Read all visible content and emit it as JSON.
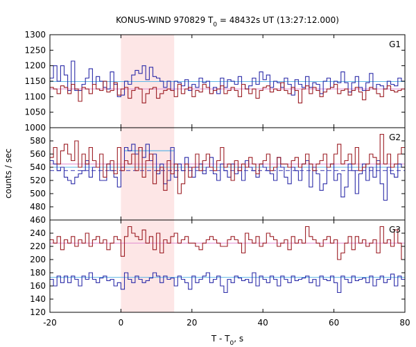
{
  "chart_data": {
    "type": "line",
    "title_main": "KONUS-WIND 970829 T",
    "title_sub": "0",
    "title_rest": " = 48432s UT (13:27:12.000)",
    "xlabel_main": "T - T",
    "xlabel_sub": "0",
    "xlabel_rest": ", s",
    "ylabel": "counts / sec",
    "xlim": [
      -20,
      80
    ],
    "x_ticks": [
      "-20",
      "0",
      "20",
      "40",
      "60",
      "80"
    ],
    "highlight_interval": [
      0,
      15
    ],
    "highlight_color": "#fde6e6",
    "bin_edges_start": -20,
    "bin_width": 1,
    "panels": [
      {
        "label": "G1",
        "ylim": [
          1000,
          1300
        ],
        "y_ticks": [
          "1000",
          "1050",
          "1100",
          "1150",
          "1200",
          "1250",
          "1300"
        ],
        "background_levels": [
          {
            "value": 1149,
            "color": "#5fb6e6"
          },
          {
            "value": 1125,
            "color": "#e08ad0"
          }
        ],
        "series": [
          {
            "color": "#2b2ba8",
            "values": [
              1160,
              1200,
              1150,
              1200,
              1170,
              1120,
              1215,
              1120,
              1120,
              1140,
              1160,
              1190,
              1140,
              1165,
              1150,
              1130,
              1125,
              1180,
              1140,
              1100,
              1105,
              1150,
              1140,
              1170,
              1185,
              1175,
              1200,
              1155,
              1195,
              1165,
              1160,
              1150,
              1130,
              1150,
              1120,
              1150,
              1145,
              1135,
              1155,
              1120,
              1140,
              1130,
              1160,
              1145,
              1150,
              1110,
              1130,
              1110,
              1160,
              1130,
              1155,
              1150,
              1140,
              1165,
              1140,
              1125,
              1135,
              1160,
              1140,
              1180,
              1155,
              1170,
              1130,
              1150,
              1145,
              1130,
              1160,
              1140,
              1105,
              1155,
              1140,
              1130,
              1165,
              1130,
              1145,
              1140,
              1110,
              1150,
              1160,
              1130,
              1150,
              1145,
              1180,
              1145,
              1115,
              1145,
              1165,
              1130,
              1120,
              1145,
              1175,
              1125,
              1140,
              1135,
              1125,
              1150,
              1140,
              1135,
              1160,
              1150
            ]
          },
          {
            "color": "#9b1b22",
            "values": [
              1130,
              1125,
              1110,
              1135,
              1130,
              1110,
              1140,
              1125,
              1085,
              1130,
              1125,
              1110,
              1140,
              1125,
              1120,
              1150,
              1115,
              1120,
              1145,
              1105,
              1125,
              1130,
              1095,
              1120,
              1130,
              1125,
              1080,
              1110,
              1125,
              1130,
              1095,
              1110,
              1120,
              1125,
              1120,
              1100,
              1140,
              1110,
              1125,
              1130,
              1100,
              1120,
              1115,
              1140,
              1130,
              1110,
              1120,
              1125,
              1135,
              1110,
              1120,
              1130,
              1120,
              1100,
              1140,
              1125,
              1110,
              1125,
              1095,
              1120,
              1130,
              1135,
              1115,
              1125,
              1120,
              1145,
              1120,
              1110,
              1130,
              1120,
              1080,
              1125,
              1135,
              1110,
              1130,
              1120,
              1100,
              1115,
              1125,
              1130,
              1140,
              1110,
              1120,
              1125,
              1105,
              1120,
              1130,
              1115,
              1090,
              1120,
              1130,
              1125,
              1110,
              1100,
              1125,
              1135,
              1120,
              1115,
              1120,
              1125
            ]
          }
        ]
      },
      {
        "label": "G2",
        "ylim": [
          460,
          600
        ],
        "y_ticks": [
          "460",
          "480",
          "500",
          "520",
          "540",
          "560",
          "580"
        ],
        "background_levels": [
          {
            "value": 545,
            "color": "#e08ad0"
          },
          {
            "value": 540,
            "color": "#5fb6e6"
          },
          {
            "value": 535,
            "color": "#3434b0",
            "dashed": true
          }
        ],
        "segments": [
          {
            "x0": 1,
            "x1": 15,
            "value": 565,
            "color": "#5fb6e6"
          }
        ],
        "series": [
          {
            "color": "#2b2ba8",
            "values": [
              550,
              545,
              535,
              540,
              525,
              520,
              515,
              525,
              530,
              535,
              550,
              525,
              540,
              540,
              520,
              520,
              545,
              535,
              525,
              510,
              540,
              570,
              565,
              575,
              560,
              570,
              555,
              575,
              550,
              560,
              530,
              545,
              515,
              520,
              570,
              525,
              545,
              535,
              555,
              540,
              525,
              540,
              545,
              530,
              540,
              555,
              530,
              520,
              545,
              535,
              525,
              545,
              530,
              540,
              520,
              550,
              540,
              535,
              525,
              545,
              540,
              535,
              530,
              520,
              555,
              540,
              525,
              515,
              540,
              535,
              520,
              545,
              550,
              510,
              540,
              530,
              505,
              515,
              540,
              545,
              520,
              530,
              495,
              510,
              545,
              535,
              500,
              530,
              545,
              520,
              540,
              525,
              550,
              515,
              490,
              540,
              530,
              525,
              545,
              540
            ]
          },
          {
            "color": "#9b1b22",
            "values": [
              555,
              570,
              545,
              565,
              575,
              560,
              550,
              580,
              540,
              560,
              545,
              570,
              550,
              540,
              560,
              525,
              545,
              550,
              530,
              570,
              535,
              550,
              545,
              560,
              535,
              570,
              525,
              550,
              560,
              515,
              535,
              540,
              505,
              550,
              530,
              545,
              500,
              515,
              545,
              525,
              540,
              560,
              535,
              550,
              560,
              540,
              535,
              550,
              570,
              540,
              545,
              520,
              550,
              535,
              545,
              540,
              555,
              545,
              530,
              545,
              550,
              560,
              535,
              540,
              555,
              545,
              545,
              540,
              550,
              555,
              540,
              545,
              560,
              545,
              535,
              545,
              550,
              560,
              540,
              545,
              560,
              575,
              545,
              550,
              560,
              545,
              570,
              535,
              540,
              545,
              560,
              555,
              545,
              590,
              545,
              560,
              540,
              545,
              560,
              570
            ]
          }
        ]
      },
      {
        "label": "G3",
        "ylim": [
          120,
          260
        ],
        "y_ticks": [
          "120",
          "140",
          "160",
          "180",
          "200",
          "220",
          "240"
        ],
        "background_levels": [
          {
            "value": 225,
            "color": "#e08ad0"
          },
          {
            "value": 173,
            "color": "#5fb6e6"
          }
        ],
        "series": [
          {
            "color": "#2b2ba8",
            "values": [
              170,
              160,
              175,
              165,
              175,
              165,
              175,
              170,
              160,
              175,
              170,
              180,
              170,
              165,
              172,
              175,
              168,
              170,
              160,
              165,
              155,
              180,
              170,
              165,
              175,
              170,
              165,
              168,
              172,
              180,
              175,
              165,
              175,
              170,
              172,
              160,
              175,
              170,
              165,
              155,
              175,
              165,
              170,
              175,
              180,
              165,
              170,
              175,
              160,
              150,
              170,
              165,
              175,
              172,
              168,
              170,
              165,
              180,
              160,
              175,
              170,
              165,
              175,
              170,
              160,
              175,
              170,
              165,
              175,
              168,
              170,
              172,
              175,
              165,
              170,
              160,
              175,
              170,
              168,
              175,
              165,
              150,
              175,
              170,
              165,
              175,
              168,
              170,
              172,
              165,
              175,
              160,
              170,
              175,
              165,
              170,
              178,
              160,
              175,
              170
            ]
          },
          {
            "color": "#9b1b22",
            "values": [
              230,
              225,
              235,
              215,
              230,
              225,
              235,
              220,
              230,
              225,
              240,
              220,
              230,
              235,
              225,
              230,
              215,
              225,
              235,
              230,
              205,
              235,
              250,
              240,
              235,
              230,
              245,
              225,
              235,
              215,
              240,
              210,
              230,
              225,
              235,
              240,
              225,
              230,
              235,
              225,
              225,
              220,
              215,
              225,
              230,
              235,
              230,
              225,
              220,
              220,
              230,
              235,
              230,
              225,
              210,
              240,
              230,
              225,
              235,
              220,
              225,
              240,
              235,
              230,
              220,
              225,
              230,
              215,
              235,
              225,
              230,
              225,
              250,
              235,
              230,
              225,
              220,
              230,
              235,
              225,
              230,
              200,
              210,
              225,
              235,
              215,
              235,
              225,
              230,
              220,
              225,
              230,
              210,
              250,
              225,
              230,
              220,
              245,
              225,
              200
            ]
          }
        ]
      }
    ]
  }
}
